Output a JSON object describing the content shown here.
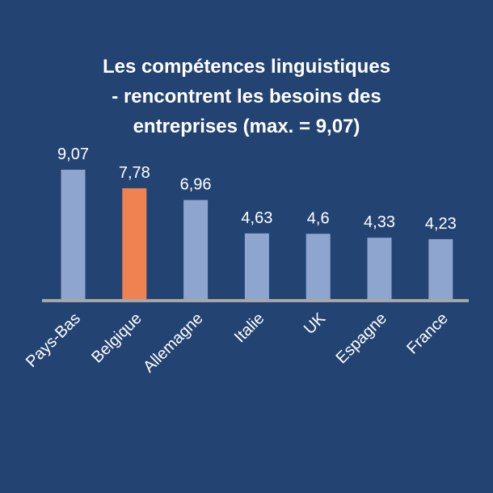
{
  "chart_data": {
    "type": "bar",
    "title_lines": [
      "Les compétences linguistiques",
      "- rencontrent les besoins des",
      "entreprises (max. = 9,07)"
    ],
    "categories": [
      "Pays-Bas",
      "Belgique",
      "Allemagne",
      "Italie",
      "UK",
      "Espagne",
      "France"
    ],
    "values": [
      9.07,
      7.78,
      6.96,
      4.63,
      4.6,
      4.33,
      4.23
    ],
    "value_labels": [
      "9,07",
      "7,78",
      "6,96",
      "4,63",
      "4,6",
      "4,33",
      "4,23"
    ],
    "highlight_category": "Belgique",
    "ylim": [
      0,
      9.07
    ],
    "grid": false,
    "legend": "none",
    "colors": {
      "background": "#234372",
      "bar": "#8EA5CF",
      "highlight_bar": "#F08150",
      "axis": "#A6A6A6",
      "text": "#FFFFFF"
    }
  }
}
